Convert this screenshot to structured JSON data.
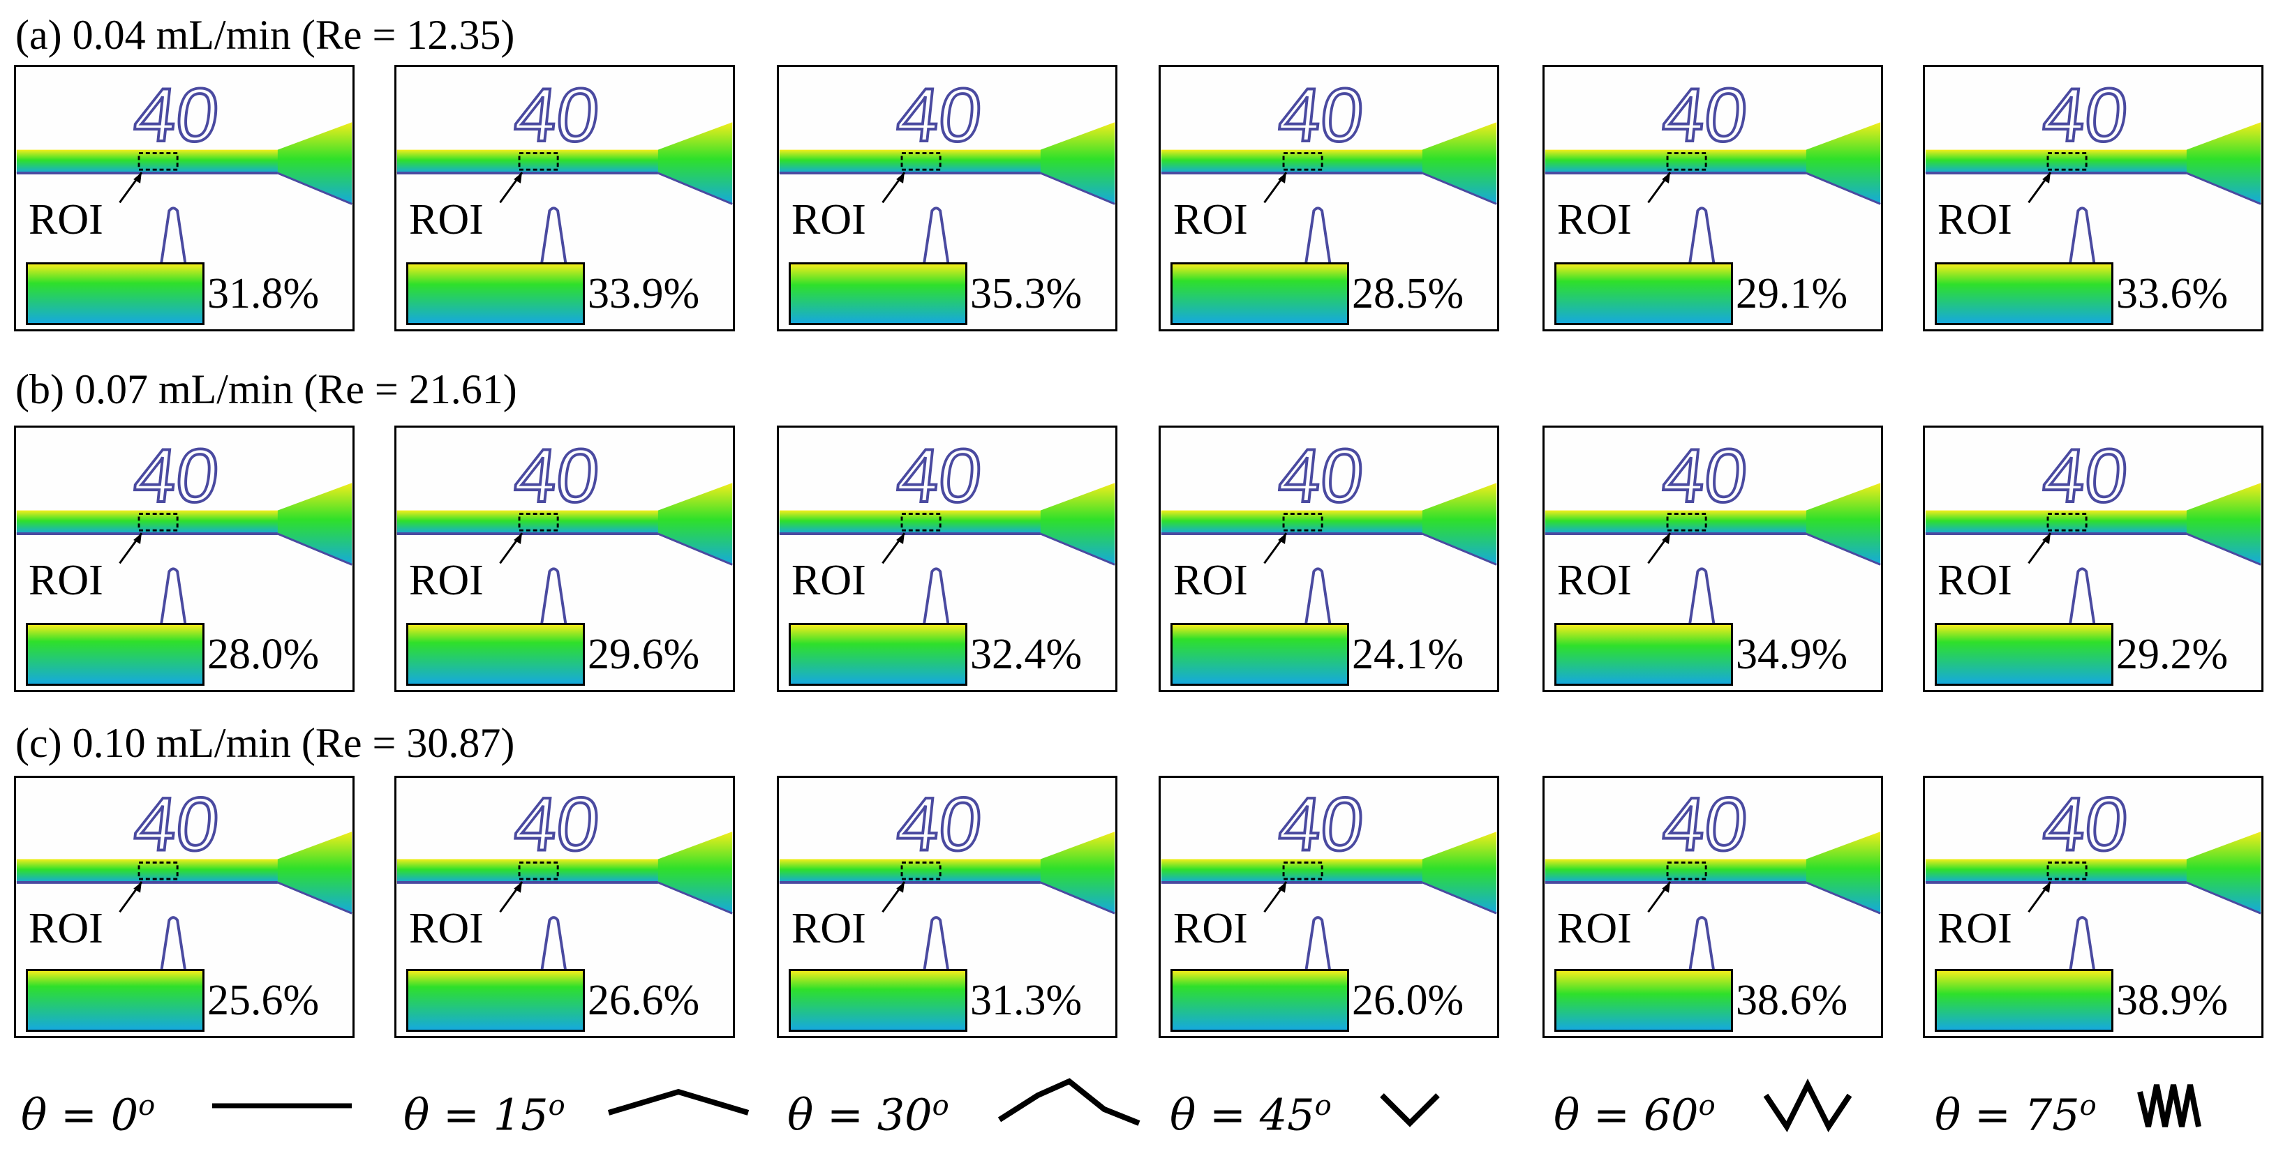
{
  "rows": [
    {
      "title": "(a) 0.04 mL/min (Re = 12.35)",
      "panels": [
        {
          "roi": "ROI",
          "fraction": "31.8%",
          "number": "40",
          "inset_mix": 0.32
        },
        {
          "roi": "ROI",
          "fraction": "33.9%",
          "number": "40",
          "inset_mix": 0.34
        },
        {
          "roi": "ROI",
          "fraction": "35.3%",
          "number": "40",
          "inset_mix": 0.35
        },
        {
          "roi": "ROI",
          "fraction": "28.5%",
          "number": "40",
          "inset_mix": 0.28
        },
        {
          "roi": "ROI",
          "fraction": "29.1%",
          "number": "40",
          "inset_mix": 0.29
        },
        {
          "roi": "ROI",
          "fraction": "33.6%",
          "number": "40",
          "inset_mix": 0.34
        }
      ]
    },
    {
      "title": "(b) 0.07 mL/min (Re = 21.61)",
      "panels": [
        {
          "roi": "ROI",
          "fraction": "28.0%",
          "number": "40",
          "inset_mix": 0.28
        },
        {
          "roi": "ROI",
          "fraction": "29.6%",
          "number": "40",
          "inset_mix": 0.3
        },
        {
          "roi": "ROI",
          "fraction": "32.4%",
          "number": "40",
          "inset_mix": 0.32
        },
        {
          "roi": "ROI",
          "fraction": "24.1%",
          "number": "40",
          "inset_mix": 0.24
        },
        {
          "roi": "ROI",
          "fraction": "34.9%",
          "number": "40",
          "inset_mix": 0.35
        },
        {
          "roi": "ROI",
          "fraction": "29.2%",
          "number": "40",
          "inset_mix": 0.29
        }
      ]
    },
    {
      "title": "(c) 0.10 mL/min (Re = 30.87)",
      "panels": [
        {
          "roi": "ROI",
          "fraction": "25.6%",
          "number": "40",
          "inset_mix": 0.26
        },
        {
          "roi": "ROI",
          "fraction": "26.6%",
          "number": "40",
          "inset_mix": 0.27
        },
        {
          "roi": "ROI",
          "fraction": "31.3%",
          "number": "40",
          "inset_mix": 0.31
        },
        {
          "roi": "ROI",
          "fraction": "26.0%",
          "number": "40",
          "inset_mix": 0.26
        },
        {
          "roi": "ROI",
          "fraction": "38.6%",
          "number": "40",
          "inset_mix": 0.39
        },
        {
          "roi": "ROI",
          "fraction": "38.9%",
          "number": "40",
          "inset_mix": 0.39
        }
      ]
    }
  ],
  "legend": [
    {
      "label": "θ = 0",
      "sup": "o",
      "shape": "straight-line-icon"
    },
    {
      "label": "θ = 15",
      "sup": "o",
      "shape": "zigzag-15-icon"
    },
    {
      "label": "θ = 30",
      "sup": "o",
      "shape": "zigzag-30-icon"
    },
    {
      "label": "θ = 45",
      "sup": "o",
      "shape": "zigzag-45-icon"
    },
    {
      "label": "θ = 60",
      "sup": "o",
      "shape": "zigzag-60-icon"
    },
    {
      "label": "θ = 75",
      "sup": "o",
      "shape": "zigzag-75-icon"
    }
  ],
  "colors": {
    "yellow": "#f4ee1c",
    "green": "#2fe02a",
    "cyan": "#16a9dd",
    "outline": "#4a4aa0"
  }
}
